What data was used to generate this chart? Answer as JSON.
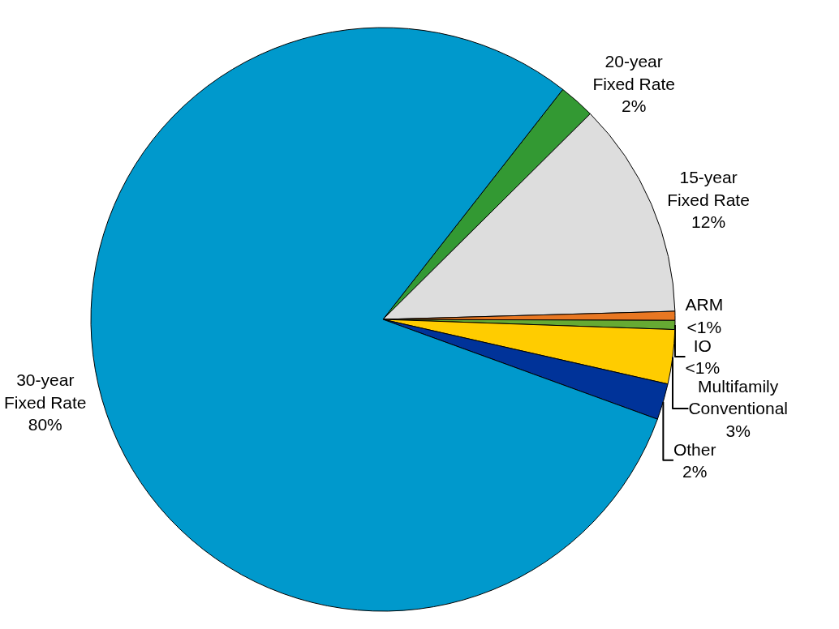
{
  "chart_data": {
    "type": "pie",
    "categories": [
      "20-year Fixed Rate",
      "15-year Fixed Rate",
      "ARM",
      "IO",
      "Multifamily Conventional",
      "Other",
      "30-year Fixed Rate"
    ],
    "values": [
      2,
      12,
      0.5,
      0.5,
      3,
      2,
      80
    ],
    "value_labels": [
      "2%",
      "12%",
      "<1%",
      "<1%",
      "3%",
      "2%",
      "80%"
    ],
    "colors": [
      "#339933",
      "#dddddd",
      "#e87722",
      "#66aa33",
      "#ffcc00",
      "#003399",
      "#0099cc"
    ]
  }
}
